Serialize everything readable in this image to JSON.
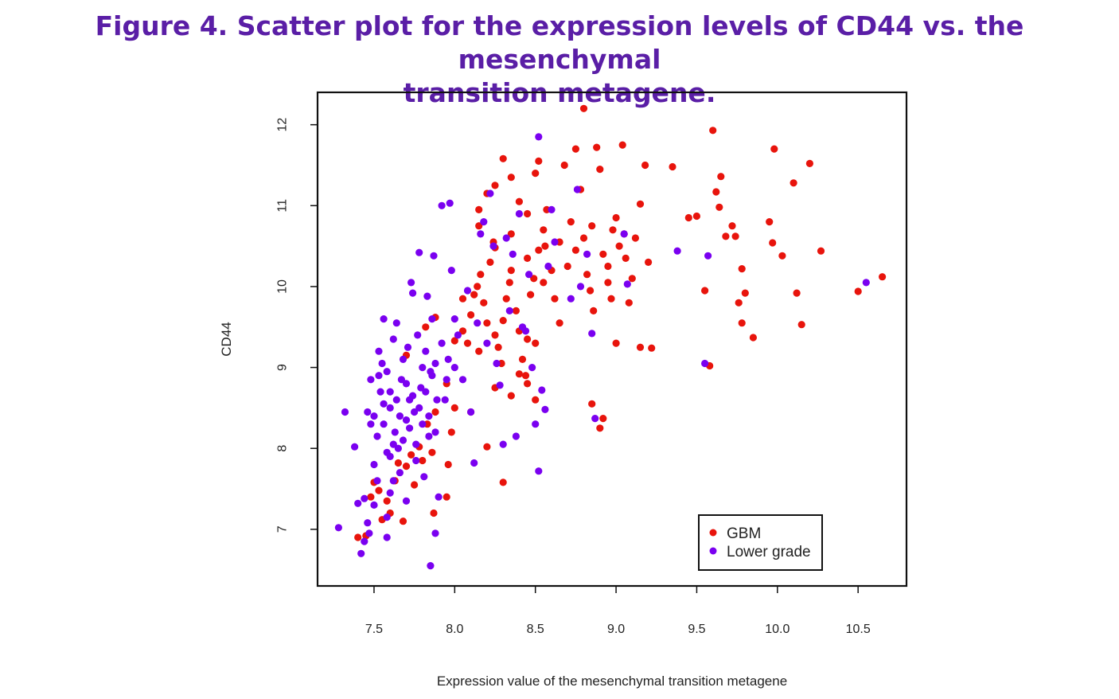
{
  "title": {
    "line1": "Figure 4. Scatter plot for the expression levels of CD44 vs. the mesenchymal",
    "line2": "transition metagene."
  },
  "chart_data": {
    "type": "scatter",
    "title": "Figure 4. Scatter plot for the expression levels of CD44 vs. the mesenchymal transition metagene.",
    "xlabel": "Expression value of the mesenchymal transition metagene",
    "ylabel": "CD44",
    "xlim": [
      7.15,
      10.8
    ],
    "ylim": [
      6.3,
      12.4
    ],
    "xticks": [
      7.5,
      8.0,
      8.5,
      9.0,
      9.5,
      10.0,
      10.5
    ],
    "xtick_labels": [
      "7.5",
      "8.0",
      "8.5",
      "9.0",
      "9.5",
      "10.0",
      "10.5"
    ],
    "yticks": [
      7,
      8,
      9,
      10,
      11,
      12
    ],
    "ytick_labels": [
      "7",
      "8",
      "9",
      "10",
      "11",
      "12"
    ],
    "grid": false,
    "legend": {
      "position": "bottom-right",
      "entries": [
        "GBM",
        "Lower grade"
      ]
    },
    "series": [
      {
        "name": "GBM",
        "color": "#e8140c",
        "points": [
          [
            7.4,
            6.9
          ],
          [
            7.45,
            6.92
          ],
          [
            7.48,
            7.4
          ],
          [
            7.5,
            7.58
          ],
          [
            7.53,
            7.48
          ],
          [
            7.55,
            7.12
          ],
          [
            7.58,
            7.35
          ],
          [
            7.6,
            7.2
          ],
          [
            7.63,
            7.6
          ],
          [
            7.65,
            7.82
          ],
          [
            7.68,
            7.1
          ],
          [
            7.7,
            7.78
          ],
          [
            7.73,
            7.92
          ],
          [
            7.75,
            7.55
          ],
          [
            7.78,
            8.02
          ],
          [
            7.8,
            7.85
          ],
          [
            7.83,
            8.3
          ],
          [
            7.86,
            7.95
          ],
          [
            7.88,
            8.45
          ],
          [
            7.87,
            7.2
          ],
          [
            7.95,
            7.4
          ],
          [
            7.96,
            7.8
          ],
          [
            7.98,
            8.2
          ],
          [
            8.0,
            8.5
          ],
          [
            7.7,
            9.15
          ],
          [
            7.82,
            9.5
          ],
          [
            7.88,
            9.62
          ],
          [
            7.95,
            8.8
          ],
          [
            8.0,
            9.33
          ],
          [
            8.05,
            9.45
          ],
          [
            8.08,
            9.3
          ],
          [
            8.1,
            9.65
          ],
          [
            8.12,
            9.9
          ],
          [
            8.14,
            10.0
          ],
          [
            8.16,
            10.15
          ],
          [
            8.18,
            9.8
          ],
          [
            8.2,
            9.55
          ],
          [
            8.22,
            10.3
          ],
          [
            8.24,
            10.55
          ],
          [
            8.25,
            9.4
          ],
          [
            8.27,
            9.25
          ],
          [
            8.29,
            9.05
          ],
          [
            8.3,
            9.58
          ],
          [
            8.32,
            9.85
          ],
          [
            8.34,
            10.05
          ],
          [
            8.35,
            10.2
          ],
          [
            8.38,
            9.7
          ],
          [
            8.4,
            9.45
          ],
          [
            8.42,
            9.1
          ],
          [
            8.44,
            8.9
          ],
          [
            8.45,
            9.35
          ],
          [
            8.47,
            9.9
          ],
          [
            8.49,
            10.1
          ],
          [
            8.5,
            9.3
          ],
          [
            8.52,
            10.45
          ],
          [
            8.55,
            10.7
          ],
          [
            8.57,
            10.95
          ],
          [
            8.2,
            11.15
          ],
          [
            8.25,
            11.25
          ],
          [
            8.3,
            11.58
          ],
          [
            8.35,
            11.35
          ],
          [
            8.4,
            11.05
          ],
          [
            8.45,
            10.9
          ],
          [
            8.5,
            11.4
          ],
          [
            8.52,
            11.55
          ],
          [
            8.56,
            10.5
          ],
          [
            8.6,
            10.2
          ],
          [
            8.62,
            9.85
          ],
          [
            8.65,
            9.55
          ],
          [
            8.68,
            11.5
          ],
          [
            8.7,
            10.25
          ],
          [
            8.72,
            10.8
          ],
          [
            8.75,
            11.7
          ],
          [
            8.78,
            11.2
          ],
          [
            8.8,
            10.6
          ],
          [
            8.82,
            10.15
          ],
          [
            8.84,
            9.95
          ],
          [
            8.86,
            9.7
          ],
          [
            8.88,
            11.72
          ],
          [
            8.9,
            11.45
          ],
          [
            8.92,
            10.4
          ],
          [
            8.95,
            10.25
          ],
          [
            8.97,
            9.85
          ],
          [
            8.98,
            10.7
          ],
          [
            9.0,
            10.85
          ],
          [
            9.02,
            10.5
          ],
          [
            9.04,
            11.75
          ],
          [
            9.06,
            10.35
          ],
          [
            9.08,
            9.8
          ],
          [
            9.1,
            10.1
          ],
          [
            9.12,
            10.6
          ],
          [
            9.15,
            11.02
          ],
          [
            9.18,
            11.5
          ],
          [
            9.2,
            10.3
          ],
          [
            9.22,
            9.24
          ],
          [
            9.15,
            9.25
          ],
          [
            9.0,
            9.3
          ],
          [
            8.8,
            12.2
          ],
          [
            8.85,
            8.55
          ],
          [
            8.9,
            8.25
          ],
          [
            8.92,
            8.37
          ],
          [
            8.5,
            8.6
          ],
          [
            8.3,
            7.58
          ],
          [
            8.1,
            8.45
          ],
          [
            8.2,
            8.02
          ],
          [
            9.35,
            11.48
          ],
          [
            9.45,
            10.85
          ],
          [
            9.5,
            10.87
          ],
          [
            9.55,
            9.95
          ],
          [
            9.58,
            9.02
          ],
          [
            9.6,
            11.93
          ],
          [
            9.62,
            11.17
          ],
          [
            9.64,
            10.98
          ],
          [
            9.65,
            11.36
          ],
          [
            9.68,
            10.62
          ],
          [
            9.72,
            10.75
          ],
          [
            9.74,
            10.62
          ],
          [
            9.76,
            9.8
          ],
          [
            9.78,
            9.55
          ],
          [
            9.78,
            10.22
          ],
          [
            9.8,
            9.92
          ],
          [
            9.85,
            9.37
          ],
          [
            9.95,
            10.8
          ],
          [
            9.97,
            10.54
          ],
          [
            9.98,
            11.7
          ],
          [
            10.03,
            10.38
          ],
          [
            10.1,
            11.28
          ],
          [
            10.12,
            9.92
          ],
          [
            10.15,
            9.53
          ],
          [
            10.2,
            11.52
          ],
          [
            10.27,
            10.44
          ],
          [
            10.5,
            9.94
          ],
          [
            10.65,
            10.12
          ],
          [
            8.15,
            10.75
          ],
          [
            8.25,
            10.48
          ],
          [
            8.35,
            10.65
          ],
          [
            8.45,
            10.35
          ],
          [
            8.55,
            10.05
          ],
          [
            8.65,
            10.55
          ],
          [
            8.75,
            10.45
          ],
          [
            8.85,
            10.75
          ],
          [
            8.95,
            10.05
          ],
          [
            9.05,
            10.65
          ],
          [
            8.05,
            9.85
          ],
          [
            8.15,
            9.2
          ],
          [
            8.25,
            8.75
          ],
          [
            8.35,
            8.65
          ],
          [
            8.4,
            8.92
          ],
          [
            8.45,
            8.8
          ],
          [
            8.15,
            10.95
          ]
        ]
      },
      {
        "name": "Lower grade",
        "color": "#7a00f0",
        "points": [
          [
            7.28,
            7.02
          ],
          [
            7.32,
            8.45
          ],
          [
            7.38,
            8.02
          ],
          [
            7.4,
            7.32
          ],
          [
            7.42,
            6.7
          ],
          [
            7.44,
            6.85
          ],
          [
            7.44,
            7.38
          ],
          [
            7.46,
            7.08
          ],
          [
            7.47,
            6.95
          ],
          [
            7.48,
            8.3
          ],
          [
            7.5,
            8.4
          ],
          [
            7.5,
            7.8
          ],
          [
            7.52,
            7.6
          ],
          [
            7.53,
            8.9
          ],
          [
            7.55,
            9.05
          ],
          [
            7.56,
            8.55
          ],
          [
            7.58,
            7.95
          ],
          [
            7.58,
            6.9
          ],
          [
            7.6,
            8.7
          ],
          [
            7.6,
            7.45
          ],
          [
            7.62,
            9.35
          ],
          [
            7.63,
            8.2
          ],
          [
            7.64,
            9.55
          ],
          [
            7.65,
            8.0
          ],
          [
            7.66,
            7.7
          ],
          [
            7.67,
            8.85
          ],
          [
            7.68,
            9.1
          ],
          [
            7.7,
            8.35
          ],
          [
            7.7,
            7.35
          ],
          [
            7.71,
            9.25
          ],
          [
            7.72,
            8.6
          ],
          [
            7.73,
            10.05
          ],
          [
            7.74,
            9.92
          ],
          [
            7.75,
            8.45
          ],
          [
            7.76,
            7.85
          ],
          [
            7.77,
            9.4
          ],
          [
            7.78,
            10.42
          ],
          [
            7.79,
            8.75
          ],
          [
            7.8,
            9.0
          ],
          [
            7.81,
            7.65
          ],
          [
            7.82,
            9.2
          ],
          [
            7.83,
            9.88
          ],
          [
            7.84,
            8.15
          ],
          [
            7.85,
            8.95
          ],
          [
            7.85,
            6.55
          ],
          [
            7.86,
            9.6
          ],
          [
            7.87,
            10.38
          ],
          [
            7.88,
            9.05
          ],
          [
            7.89,
            8.6
          ],
          [
            7.9,
            7.4
          ],
          [
            7.88,
            6.95
          ],
          [
            7.92,
            11.0
          ],
          [
            7.95,
            8.85
          ],
          [
            7.97,
            11.03
          ],
          [
            7.98,
            10.2
          ],
          [
            8.0,
            9.6
          ],
          [
            8.02,
            9.4
          ],
          [
            8.05,
            8.85
          ],
          [
            8.08,
            9.95
          ],
          [
            8.1,
            8.45
          ],
          [
            8.12,
            7.82
          ],
          [
            8.14,
            9.55
          ],
          [
            8.16,
            10.65
          ],
          [
            8.18,
            10.8
          ],
          [
            8.2,
            9.3
          ],
          [
            8.22,
            11.15
          ],
          [
            8.24,
            10.5
          ],
          [
            8.26,
            9.05
          ],
          [
            8.28,
            8.78
          ],
          [
            8.3,
            8.05
          ],
          [
            8.32,
            10.6
          ],
          [
            8.34,
            9.7
          ],
          [
            8.36,
            10.4
          ],
          [
            8.38,
            8.15
          ],
          [
            8.4,
            10.9
          ],
          [
            8.42,
            9.5
          ],
          [
            8.44,
            9.45
          ],
          [
            8.46,
            10.15
          ],
          [
            8.48,
            9.0
          ],
          [
            8.5,
            8.3
          ],
          [
            8.52,
            11.85
          ],
          [
            8.54,
            8.72
          ],
          [
            8.56,
            8.48
          ],
          [
            8.58,
            10.25
          ],
          [
            8.6,
            10.95
          ],
          [
            8.62,
            10.55
          ],
          [
            8.72,
            9.85
          ],
          [
            8.76,
            11.2
          ],
          [
            8.78,
            10.0
          ],
          [
            8.82,
            10.4
          ],
          [
            8.85,
            9.42
          ],
          [
            8.87,
            8.37
          ],
          [
            9.05,
            10.65
          ],
          [
            9.07,
            10.03
          ],
          [
            9.38,
            10.44
          ],
          [
            9.55,
            9.05
          ],
          [
            9.57,
            10.38
          ],
          [
            10.55,
            10.05
          ],
          [
            8.52,
            7.72
          ],
          [
            8.0,
            9.0
          ],
          [
            7.52,
            8.15
          ],
          [
            7.54,
            8.7
          ],
          [
            7.56,
            8.3
          ],
          [
            7.58,
            8.95
          ],
          [
            7.6,
            8.5
          ],
          [
            7.62,
            8.05
          ],
          [
            7.64,
            8.6
          ],
          [
            7.66,
            8.4
          ],
          [
            7.68,
            8.1
          ],
          [
            7.7,
            8.8
          ],
          [
            7.72,
            8.25
          ],
          [
            7.74,
            8.65
          ],
          [
            7.76,
            8.05
          ],
          [
            7.78,
            8.5
          ],
          [
            7.8,
            8.3
          ],
          [
            7.82,
            8.7
          ],
          [
            7.84,
            8.4
          ],
          [
            7.86,
            8.9
          ],
          [
            7.88,
            8.2
          ],
          [
            7.6,
            7.9
          ],
          [
            7.62,
            7.6
          ],
          [
            7.58,
            7.15
          ],
          [
            7.5,
            7.3
          ],
          [
            7.46,
            8.45
          ],
          [
            7.48,
            8.85
          ],
          [
            7.53,
            9.2
          ],
          [
            7.56,
            9.6
          ],
          [
            7.92,
            9.3
          ],
          [
            7.94,
            8.6
          ],
          [
            7.96,
            9.1
          ]
        ]
      }
    ]
  }
}
